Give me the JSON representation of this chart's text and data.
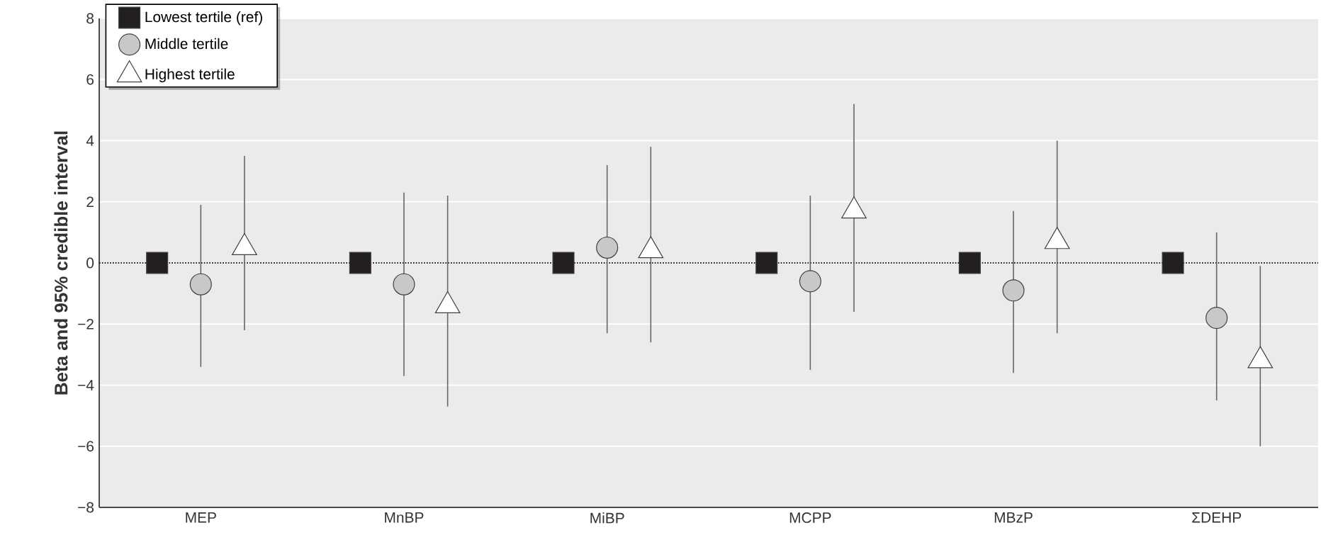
{
  "chart_data": {
    "type": "scatter",
    "ylabel": "Beta and 95% credible interval",
    "categories": [
      "MEP",
      "MnBP",
      "MiBP",
      "MCPP",
      "MBzP",
      "ΣDEHP"
    ],
    "series": [
      {
        "name": "Lowest tertile (ref)",
        "color": "#231f20",
        "marker": "square",
        "values": [
          0,
          0,
          0,
          0,
          0,
          0
        ]
      },
      {
        "name": "Middle tertile",
        "color": "#c8c8c8",
        "marker": "circle",
        "values": [
          -0.7,
          -0.7,
          0.5,
          -0.6,
          -0.9,
          -1.8
        ],
        "errors": [
          [
            -3.4,
            1.9
          ],
          [
            -3.7,
            2.3
          ],
          [
            -2.3,
            3.2
          ],
          [
            -3.5,
            2.2
          ],
          [
            -3.6,
            1.7
          ],
          [
            -4.5,
            1.0
          ]
        ]
      },
      {
        "name": "Highest tertile",
        "color": "#ffffff",
        "marker": "triangle",
        "values": [
          0.5,
          -1.4,
          0.4,
          1.7,
          0.7,
          -3.2
        ],
        "errors": [
          [
            -2.2,
            3.5
          ],
          [
            -4.7,
            2.2
          ],
          [
            -2.6,
            3.8
          ],
          [
            -1.6,
            5.2
          ],
          [
            -2.3,
            4.0
          ],
          [
            -6.0,
            -0.1
          ]
        ]
      }
    ],
    "ylim": [
      -8,
      8
    ],
    "yticks": [
      {
        "value": -8,
        "label": "−8"
      },
      {
        "value": -6,
        "label": "−6"
      },
      {
        "value": -4,
        "label": "−4"
      },
      {
        "value": -2,
        "label": "−2"
      },
      0,
      2,
      4,
      6,
      8
    ],
    "grid": "y",
    "legend": "top left",
    "ref_lines": [
      {
        "axis": "y",
        "value": 0,
        "line_style": "dotted"
      }
    ]
  }
}
